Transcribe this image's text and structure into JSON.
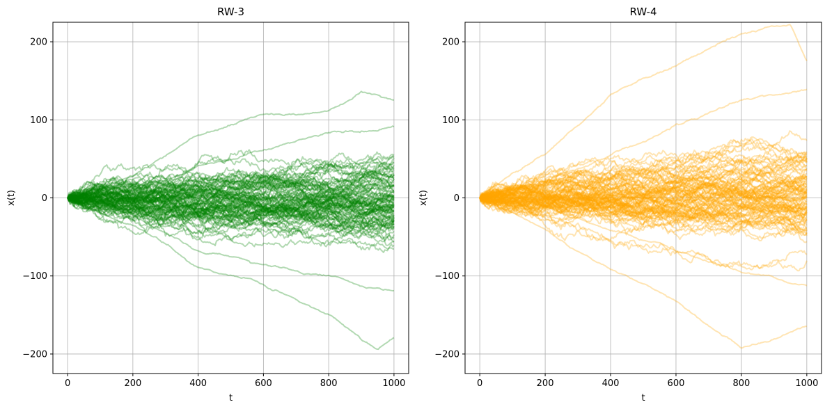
{
  "chart_data": [
    {
      "type": "line",
      "title": "RW-3",
      "xlabel": "t",
      "ylabel": "x(t)",
      "xlim": [
        -45,
        1045
      ],
      "ylim": [
        -225,
        225
      ],
      "xticks": [
        0,
        200,
        400,
        600,
        800,
        1000
      ],
      "xtick_labels": [
        "0",
        "200",
        "400",
        "600",
        "800",
        "1000"
      ],
      "yticks": [
        -200,
        -100,
        0,
        100,
        200
      ],
      "ytick_labels": [
        "−200",
        "−100",
        "0",
        "100",
        "200"
      ],
      "grid": true,
      "color": "#008000",
      "opacity": 0.3,
      "n_steps": 1000,
      "series_count": 100,
      "endpoint_range": [
        -180,
        130
      ],
      "series": [
        {
          "x": [
            0,
            200,
            400,
            600,
            800,
            950,
            1000
          ],
          "values": [
            0,
            -40,
            -90,
            -110,
            -150,
            -190,
            -175
          ]
        },
        {
          "x": [
            0,
            200,
            400,
            600,
            800,
            900,
            1000
          ],
          "values": [
            0,
            30,
            80,
            105,
            110,
            135,
            125
          ]
        },
        {
          "x": [
            0,
            200,
            400,
            600,
            800,
            1000
          ],
          "values": [
            0,
            -20,
            -60,
            -80,
            -100,
            -120
          ]
        },
        {
          "x": [
            0,
            200,
            400,
            600,
            800,
            1000
          ],
          "values": [
            0,
            15,
            40,
            60,
            80,
            95
          ]
        }
      ]
    },
    {
      "type": "line",
      "title": "RW-4",
      "xlabel": "t",
      "ylabel": "x(t)",
      "xlim": [
        -45,
        1045
      ],
      "ylim": [
        -225,
        225
      ],
      "xticks": [
        0,
        200,
        400,
        600,
        800,
        1000
      ],
      "xtick_labels": [
        "0",
        "200",
        "400",
        "600",
        "800",
        "1000"
      ],
      "yticks": [
        -200,
        -100,
        0,
        100,
        200
      ],
      "ytick_labels": [
        "−200",
        "−100",
        "0",
        "100",
        "200"
      ],
      "grid": true,
      "color": "#ffa500",
      "opacity": 0.3,
      "n_steps": 1000,
      "series_count": 100,
      "endpoint_range": [
        -165,
        160
      ],
      "series": [
        {
          "x": [
            0,
            200,
            400,
            600,
            800,
            950,
            1000
          ],
          "values": [
            0,
            60,
            130,
            165,
            200,
            205,
            160
          ]
        },
        {
          "x": [
            0,
            200,
            400,
            600,
            800,
            1000
          ],
          "values": [
            0,
            -40,
            -90,
            -130,
            -190,
            -165
          ]
        },
        {
          "x": [
            0,
            200,
            400,
            600,
            800,
            1000
          ],
          "values": [
            0,
            20,
            60,
            100,
            130,
            140
          ]
        },
        {
          "x": [
            0,
            200,
            400,
            600,
            800,
            1000
          ],
          "values": [
            0,
            -10,
            -40,
            -70,
            -100,
            -115
          ]
        }
      ]
    }
  ]
}
